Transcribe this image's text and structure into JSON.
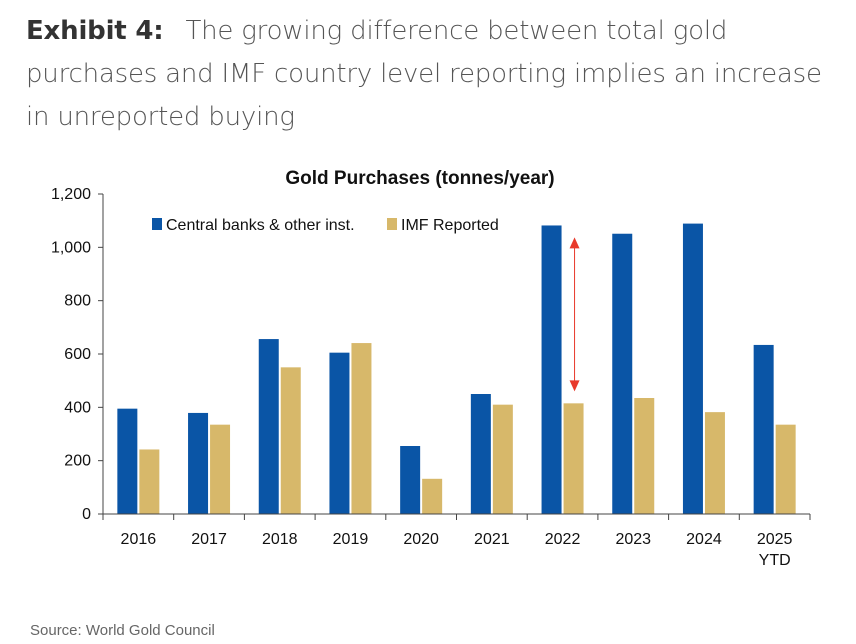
{
  "heading": {
    "exhibit": "Exhibit 4:",
    "title": "The growing difference between total gold purchases and IMF country level reporting implies an increase in unreported buying"
  },
  "source": "Source: World Gold Council",
  "colors": {
    "central": "#0a55a6",
    "imf": "#d7b86a",
    "arrow": "#e8392b",
    "axis": "#444444"
  },
  "chart_data": {
    "type": "bar",
    "title": "Gold Purchases (tonnes/year)",
    "categories": [
      "2016",
      "2017",
      "2018",
      "2019",
      "2020",
      "2021",
      "2022",
      "2023",
      "2024",
      "2025"
    ],
    "category_sublabels": [
      "",
      "",
      "",
      "",
      "",
      "",
      "",
      "",
      "",
      "YTD"
    ],
    "series": [
      {
        "name": "Central banks & other inst.",
        "color": "#0a55a6",
        "values": [
          395,
          379,
          656,
          605,
          255,
          450,
          1082,
          1051,
          1089,
          634
        ]
      },
      {
        "name": "IMF Reported",
        "color": "#d7b86a",
        "values": [
          242,
          335,
          550,
          641,
          132,
          410,
          415,
          435,
          382,
          335
        ]
      }
    ],
    "ylim": [
      0,
      1200
    ],
    "yticks": [
      0,
      200,
      400,
      600,
      800,
      1000,
      1200
    ],
    "ytick_labels": [
      "0",
      "200",
      "400",
      "600",
      "800",
      "1,000",
      "1,200"
    ],
    "annotation": {
      "type": "double-arrow",
      "category": "2022",
      "from": 415,
      "to": 1000
    },
    "legend": "top-left"
  }
}
